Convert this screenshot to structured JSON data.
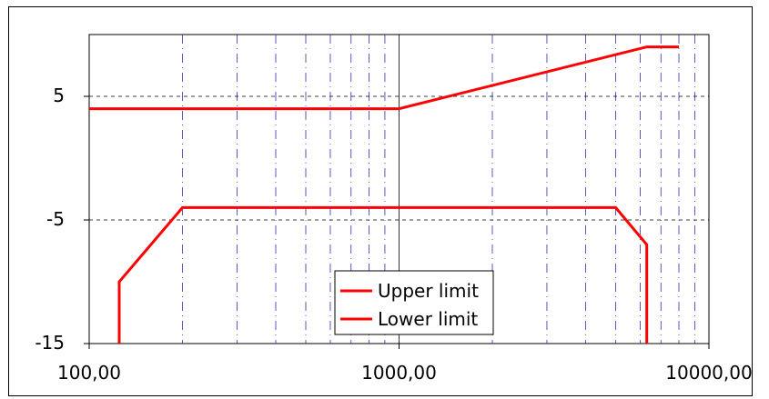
{
  "chart_data": {
    "type": "line",
    "title": "",
    "xlabel": "",
    "ylabel": "",
    "x_scale": "log",
    "xlim": [
      100,
      10000
    ],
    "ylim": [
      -15,
      10
    ],
    "x_tick_labels": [
      "100,00",
      "1000,00",
      "10000,00"
    ],
    "x_tick_values": [
      100,
      1000,
      10000
    ],
    "y_tick_labels": [
      "5",
      "-5",
      "-15"
    ],
    "y_tick_values": [
      5,
      -5,
      -15
    ],
    "grid": {
      "x_minor": true,
      "y_major_dashed": true
    },
    "legend_position": "bottom-center",
    "series": [
      {
        "name": "Upper limit",
        "color": "#ff0000",
        "points": [
          [
            100,
            4
          ],
          [
            1000,
            4
          ],
          [
            6300,
            9
          ],
          [
            8000,
            9
          ]
        ]
      },
      {
        "name": "Lower limit",
        "color": "#ff0000",
        "points": [
          [
            125,
            -20
          ],
          [
            125,
            -10
          ],
          [
            200,
            -4
          ],
          [
            5000,
            -4
          ],
          [
            6300,
            -7
          ],
          [
            6300,
            -20
          ]
        ]
      }
    ]
  }
}
